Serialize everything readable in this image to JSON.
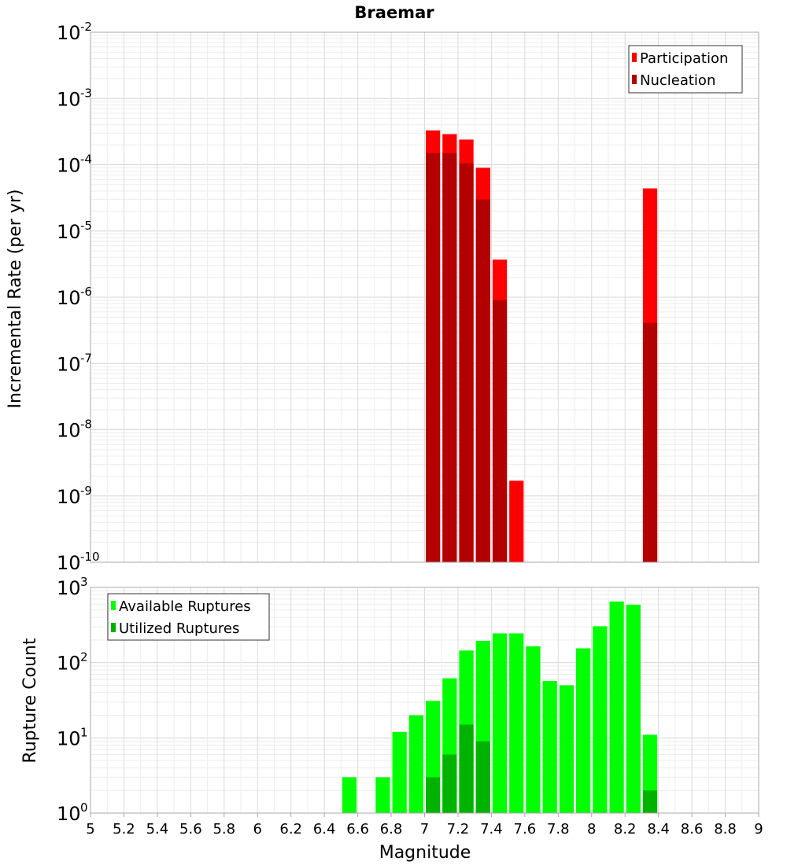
{
  "chart_data": [
    {
      "type": "bar",
      "scale": "log",
      "title": "Braemar",
      "xlabel": "",
      "ylabel": "Incremental Rate (per yr)",
      "xlim": [
        5,
        9
      ],
      "ylim_exponents": [
        -10,
        -2
      ],
      "bar_width": 0.1,
      "legend": {
        "position": "top-right",
        "entries": [
          "Participation",
          "Nucleation"
        ]
      },
      "series": [
        {
          "name": "Participation",
          "color": "#ff0000",
          "points": [
            {
              "x": 7.05,
              "y": 0.00033
            },
            {
              "x": 7.15,
              "y": 0.00029
            },
            {
              "x": 7.25,
              "y": 0.00024
            },
            {
              "x": 7.35,
              "y": 9e-05
            },
            {
              "x": 7.45,
              "y": 3.7e-06
            },
            {
              "x": 7.55,
              "y": 1.7e-09
            },
            {
              "x": 8.35,
              "y": 4.4e-05
            }
          ]
        },
        {
          "name": "Nucleation",
          "color": "#b30000",
          "points": [
            {
              "x": 7.05,
              "y": 0.00015
            },
            {
              "x": 7.15,
              "y": 0.00015
            },
            {
              "x": 7.25,
              "y": 0.000105
            },
            {
              "x": 7.35,
              "y": 3e-05
            },
            {
              "x": 7.45,
              "y": 9e-07
            },
            {
              "x": 8.35,
              "y": 4.1e-07
            }
          ]
        }
      ]
    },
    {
      "type": "bar",
      "scale": "log",
      "title": "",
      "xlabel": "Magnitude",
      "ylabel": "Rupture Count",
      "xlim": [
        5,
        9
      ],
      "ylim_exponents": [
        0,
        3
      ],
      "bar_width": 0.1,
      "legend": {
        "position": "top-left",
        "entries": [
          "Available Ruptures",
          "Utilized Ruptures"
        ]
      },
      "series": [
        {
          "name": "Available Ruptures",
          "color": "#00ff00",
          "points": [
            {
              "x": 6.55,
              "y": 3
            },
            {
              "x": 6.75,
              "y": 3
            },
            {
              "x": 6.85,
              "y": 12
            },
            {
              "x": 6.95,
              "y": 20
            },
            {
              "x": 7.05,
              "y": 31
            },
            {
              "x": 7.15,
              "y": 62
            },
            {
              "x": 7.25,
              "y": 145
            },
            {
              "x": 7.35,
              "y": 195
            },
            {
              "x": 7.45,
              "y": 245
            },
            {
              "x": 7.55,
              "y": 245
            },
            {
              "x": 7.65,
              "y": 165
            },
            {
              "x": 7.75,
              "y": 57
            },
            {
              "x": 7.85,
              "y": 50
            },
            {
              "x": 7.95,
              "y": 155
            },
            {
              "x": 8.05,
              "y": 305
            },
            {
              "x": 8.15,
              "y": 650
            },
            {
              "x": 8.25,
              "y": 590
            },
            {
              "x": 8.35,
              "y": 11
            }
          ]
        },
        {
          "name": "Utilized Ruptures",
          "color": "#00b300",
          "points": [
            {
              "x": 7.05,
              "y": 3
            },
            {
              "x": 7.15,
              "y": 6
            },
            {
              "x": 7.25,
              "y": 15
            },
            {
              "x": 7.35,
              "y": 9
            },
            {
              "x": 7.45,
              "y": 1
            },
            {
              "x": 7.55,
              "y": 1
            },
            {
              "x": 8.35,
              "y": 2
            }
          ]
        }
      ]
    }
  ],
  "x_ticks": [
    "5",
    "5.2",
    "5.4",
    "5.6",
    "5.8",
    "6",
    "6.2",
    "6.4",
    "6.6",
    "6.8",
    "7",
    "7.2",
    "7.4",
    "7.6",
    "7.8",
    "8",
    "8.2",
    "8.4",
    "8.6",
    "8.8",
    "9"
  ],
  "x_tick_values": [
    5,
    5.2,
    5.4,
    5.6,
    5.8,
    6,
    6.2,
    6.4,
    6.6,
    6.8,
    7,
    7.2,
    7.4,
    7.6,
    7.8,
    8,
    8.2,
    8.4,
    8.6,
    8.8,
    9
  ]
}
